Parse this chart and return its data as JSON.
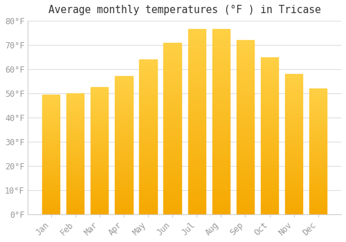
{
  "title": "Average monthly temperatures (°F ) in Tricase",
  "months": [
    "Jan",
    "Feb",
    "Mar",
    "Apr",
    "May",
    "Jun",
    "Jul",
    "Aug",
    "Sep",
    "Oct",
    "Nov",
    "Dec"
  ],
  "values": [
    49.5,
    50.0,
    52.5,
    57.0,
    64.0,
    71.0,
    76.5,
    76.5,
    72.0,
    65.0,
    58.0,
    52.0
  ],
  "bar_color_top": "#FFD045",
  "bar_color_bottom": "#F5A800",
  "background_color": "#FFFFFF",
  "grid_color": "#DDDDDD",
  "tick_color": "#999999",
  "spine_color": "#CCCCCC",
  "ylim": [
    0,
    80
  ],
  "yticks": [
    0,
    10,
    20,
    30,
    40,
    50,
    60,
    70,
    80
  ],
  "title_fontsize": 10.5,
  "tick_fontsize": 8.5
}
